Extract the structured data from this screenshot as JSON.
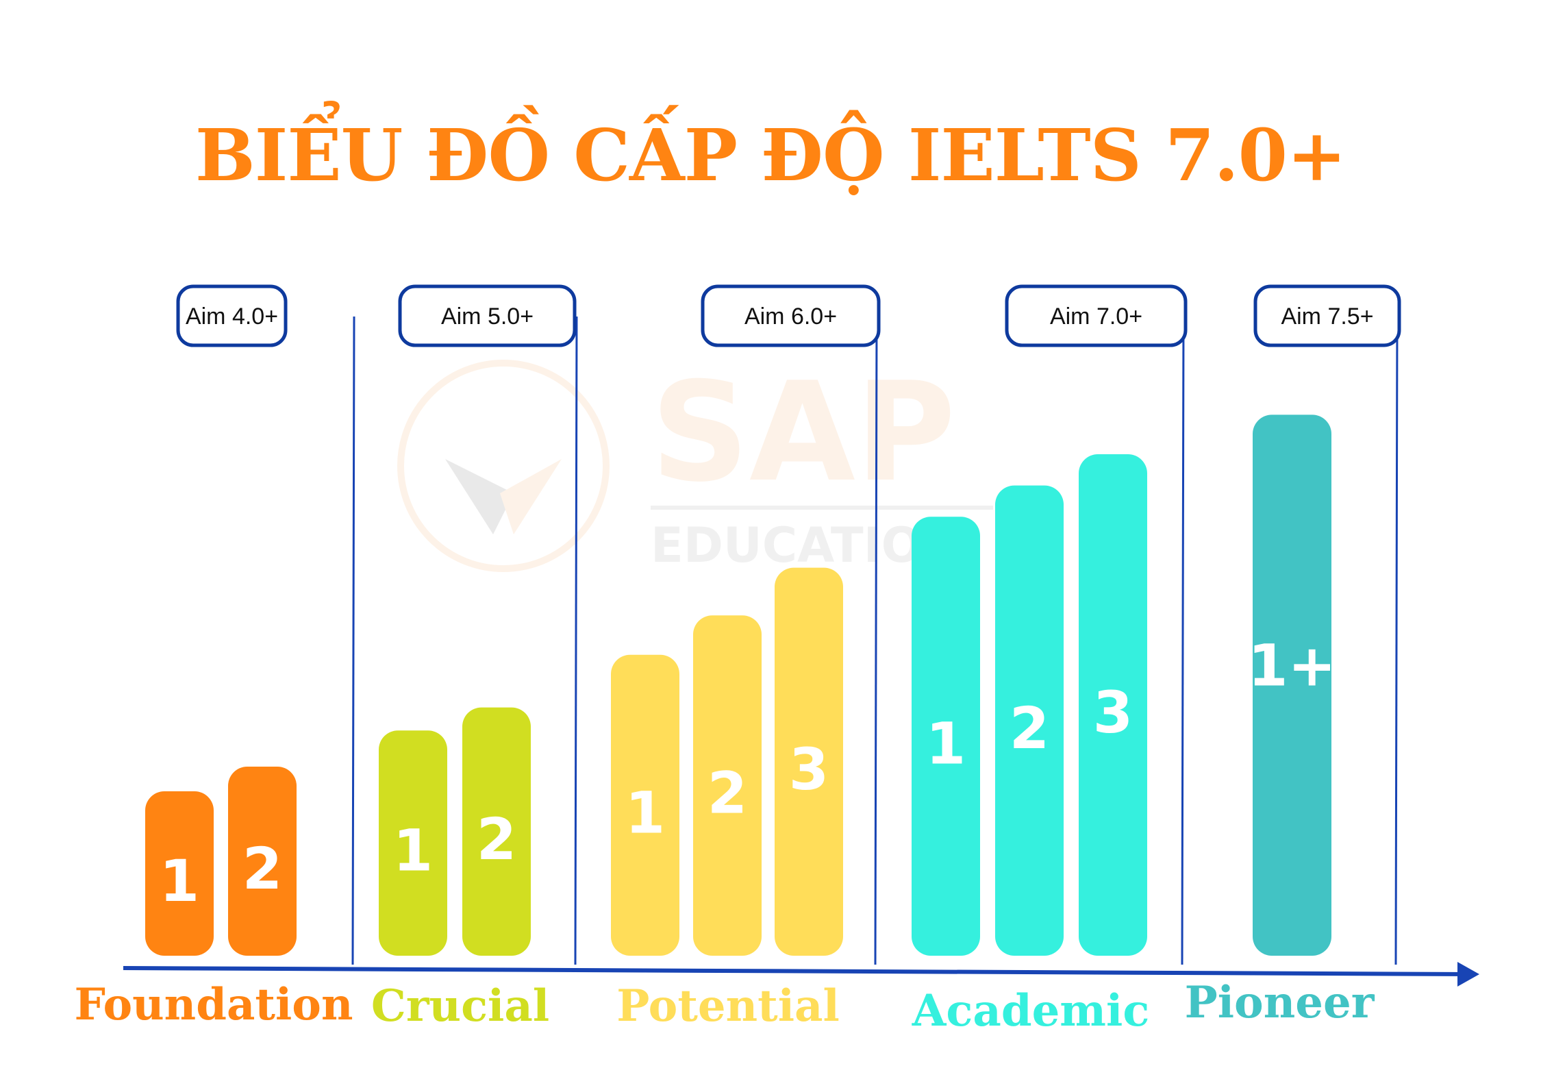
{
  "title": "BIỂU ĐỒ CẤP ĐỘ IELTS 7.0+",
  "colors": {
    "title": "#FF8412",
    "axis": "#1844B4",
    "label_box_border": "#0E3A9E"
  },
  "watermark": {
    "brand": "SAP",
    "subtitle": "EDUCATION"
  },
  "chart_data": {
    "type": "bar",
    "groups": [
      {
        "name": "Foundation",
        "aim": "Aim 4.0+",
        "color": "#FF8412",
        "bars": [
          {
            "label": "1",
            "value": 1.0
          },
          {
            "label": "2",
            "value": 1.15
          }
        ]
      },
      {
        "name": "Crucial",
        "aim": "Aim 5.0+",
        "color": "#D1DE21",
        "bars": [
          {
            "label": "1",
            "value": 1.37
          },
          {
            "label": "2",
            "value": 1.51
          }
        ]
      },
      {
        "name": "Potential",
        "aim": "Aim 6.0+",
        "color": "#FFDD59",
        "bars": [
          {
            "label": "1",
            "value": 1.83
          },
          {
            "label": "2",
            "value": 2.07
          },
          {
            "label": "3",
            "value": 2.36
          }
        ]
      },
      {
        "name": "Academic",
        "aim": "Aim 7.0+",
        "color": "#35F0DE",
        "bars": [
          {
            "label": "1",
            "value": 2.67
          },
          {
            "label": "2",
            "value": 2.86
          },
          {
            "label": "3",
            "value": 3.05
          }
        ]
      },
      {
        "name": "Pioneer",
        "aim": "Aim 7.5+",
        "color": "#42C3C4",
        "bars": [
          {
            "label": "1+",
            "value": 3.29
          }
        ]
      }
    ],
    "grid": false,
    "legend": "none"
  }
}
